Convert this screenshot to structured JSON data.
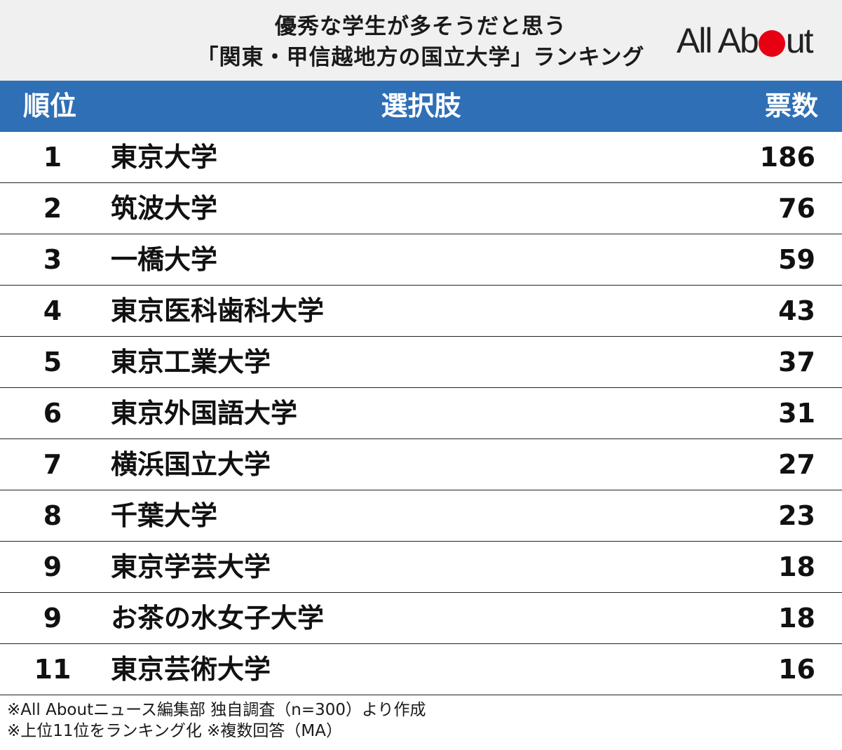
{
  "title": {
    "line1": "優秀な学生が多そうだと思う",
    "line2": "「関東・甲信越地方の国立大学」ランキング"
  },
  "logo": {
    "left": "All Ab",
    "right": "ut",
    "dot_color": "#e60012"
  },
  "table": {
    "header": {
      "rank": "順位",
      "choice": "選択肢",
      "votes": "票数"
    },
    "header_color": "#2e6fb6",
    "rows": [
      {
        "rank": "1",
        "name": "東京大学",
        "votes": "186"
      },
      {
        "rank": "2",
        "name": "筑波大学",
        "votes": "76"
      },
      {
        "rank": "3",
        "name": "一橋大学",
        "votes": "59"
      },
      {
        "rank": "4",
        "name": "東京医科歯科大学",
        "votes": "43"
      },
      {
        "rank": "5",
        "name": "東京工業大学",
        "votes": "37"
      },
      {
        "rank": "6",
        "name": "東京外国語大学",
        "votes": "31"
      },
      {
        "rank": "7",
        "name": "横浜国立大学",
        "votes": "27"
      },
      {
        "rank": "8",
        "name": "千葉大学",
        "votes": "23"
      },
      {
        "rank": "9",
        "name": "東京学芸大学",
        "votes": "18"
      },
      {
        "rank": "9",
        "name": "お茶の水女子大学",
        "votes": "18"
      },
      {
        "rank": "11",
        "name": "東京芸術大学",
        "votes": "16"
      }
    ]
  },
  "footer": {
    "line1": "※All Aboutニュース編集部 独自調査（n=300）より作成",
    "line2": "※上位11位をランキング化 ※複数回答（MA）"
  }
}
